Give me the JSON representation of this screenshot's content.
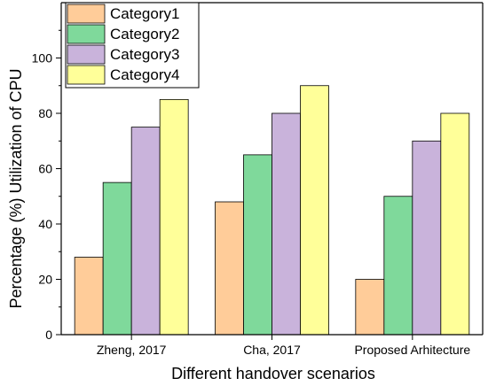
{
  "chart_data": {
    "type": "bar",
    "title": "",
    "xlabel": "Different handover scenarios",
    "ylabel": "Percentage (%) Utilization of CPU",
    "categories": [
      "Zheng, 2017",
      "Cha, 2017",
      "Proposed Arhitecture"
    ],
    "series": [
      {
        "name": "Category1",
        "values": [
          28,
          48,
          20
        ],
        "color": "#FFCC99"
      },
      {
        "name": "Category2",
        "values": [
          55,
          65,
          50
        ],
        "color": "#7FD99B"
      },
      {
        "name": "Category3",
        "values": [
          75,
          80,
          70
        ],
        "color": "#C9B3DB"
      },
      {
        "name": "Category4",
        "values": [
          85,
          90,
          80
        ],
        "color": "#FFFF99"
      }
    ],
    "ylim": [
      0,
      120
    ],
    "yticks": [
      0,
      20,
      40,
      60,
      80,
      100
    ],
    "grid": false,
    "legend": "top-left"
  }
}
